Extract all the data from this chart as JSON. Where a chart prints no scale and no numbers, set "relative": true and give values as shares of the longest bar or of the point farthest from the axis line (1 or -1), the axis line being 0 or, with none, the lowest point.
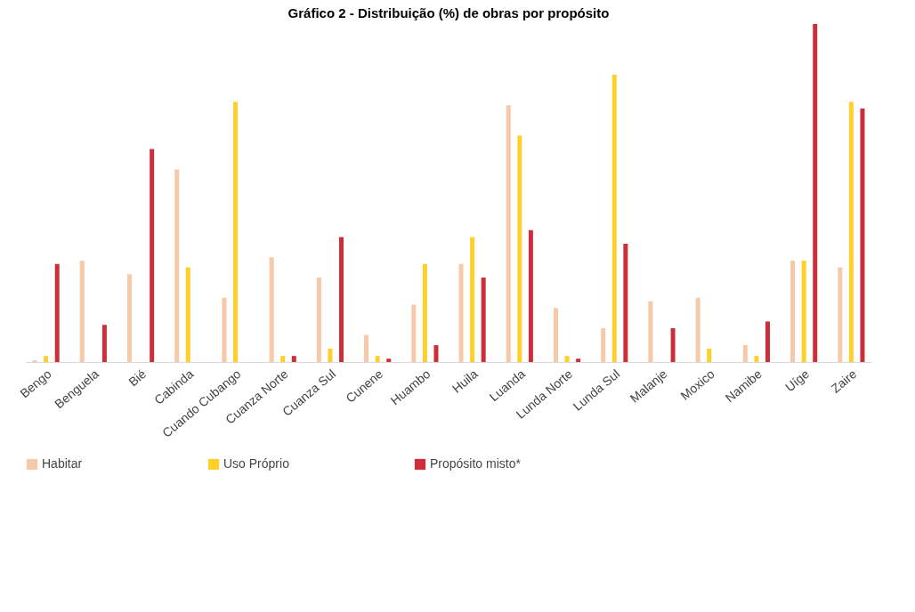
{
  "chart_data": {
    "type": "bar",
    "title": "Gráfico 2 - Distribuição (%) de obras por propósito",
    "relative": true,
    "legend": "bottom",
    "categories": [
      "Bengo",
      "Benguela",
      "Bié",
      "Cabinda",
      "Cuando Cubango",
      "Cuanza Norte",
      "Cuanza Sul",
      "Cunene",
      "Huambo",
      "Huila",
      "Luanda",
      "Lunda Norte",
      "Lunda Sul",
      "Malanje",
      "Moxico",
      "Namibe",
      "Uíge",
      "Zaire"
    ],
    "series": [
      {
        "name": "Habitar",
        "color": "#f6c9a8",
        "values": [
          0.005,
          0.3,
          0.26,
          0.57,
          0.19,
          0.31,
          0.25,
          0.08,
          0.17,
          0.29,
          0.76,
          0.16,
          0.1,
          0.18,
          0.19,
          0.05,
          0.3,
          0.28
        ]
      },
      {
        "name": "Uso Próprio",
        "color": "#ffd02a",
        "values": [
          0.018,
          0,
          0,
          0.28,
          0.77,
          0.018,
          0.04,
          0.018,
          0.29,
          0.37,
          0.67,
          0.018,
          0.85,
          0,
          0.04,
          0.018,
          0.3,
          0.77
        ]
      },
      {
        "name": "Propósito misto*",
        "color": "#cc2f3a",
        "values": [
          0.29,
          0.11,
          0.63,
          0,
          0,
          0.018,
          0.37,
          0.01,
          0.05,
          0.25,
          0.39,
          0.01,
          0.35,
          0.1,
          0,
          0.12,
          1,
          0.75
        ]
      }
    ]
  }
}
